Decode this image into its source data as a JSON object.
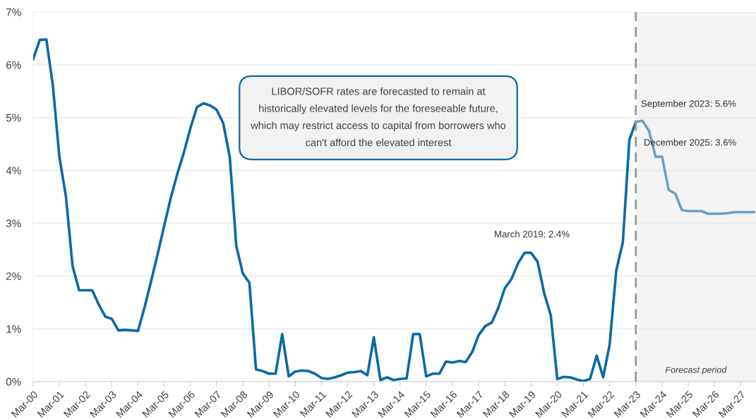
{
  "chart_data": {
    "type": "line",
    "x": [
      "2000-03",
      "2000-06",
      "2000-09",
      "2000-12",
      "2001-03",
      "2001-06",
      "2001-09",
      "2001-12",
      "2002-03",
      "2002-06",
      "2002-09",
      "2002-12",
      "2003-03",
      "2003-06",
      "2003-09",
      "2003-12",
      "2004-03",
      "2004-06",
      "2004-09",
      "2004-12",
      "2005-03",
      "2005-06",
      "2005-09",
      "2005-12",
      "2006-03",
      "2006-06",
      "2006-09",
      "2006-12",
      "2007-03",
      "2007-06",
      "2007-09",
      "2007-12",
      "2008-03",
      "2008-06",
      "2008-09",
      "2008-12",
      "2009-03",
      "2009-06",
      "2009-09",
      "2009-12",
      "2010-03",
      "2010-06",
      "2010-09",
      "2010-12",
      "2011-03",
      "2011-06",
      "2011-09",
      "2011-12",
      "2012-03",
      "2012-06",
      "2012-09",
      "2012-12",
      "2013-03",
      "2013-06",
      "2013-09",
      "2013-12",
      "2014-03",
      "2014-06",
      "2014-09",
      "2014-12",
      "2015-03",
      "2015-06",
      "2015-09",
      "2015-12",
      "2016-03",
      "2016-06",
      "2016-09",
      "2016-12",
      "2017-03",
      "2017-06",
      "2017-09",
      "2017-12",
      "2018-03",
      "2018-06",
      "2018-09",
      "2018-12",
      "2019-03",
      "2019-06",
      "2019-09",
      "2019-12",
      "2020-03",
      "2020-06",
      "2020-09",
      "2020-12",
      "2021-03",
      "2021-06",
      "2021-09",
      "2021-12",
      "2022-03",
      "2022-06",
      "2022-09",
      "2022-12",
      "2023-03"
    ],
    "series": [
      {
        "color": "#0a69a8",
        "values": [
          6.11,
          6.47,
          6.48,
          5.6,
          4.26,
          3.5,
          2.19,
          1.73,
          1.73,
          1.73,
          1.46,
          1.23,
          1.19,
          0.97,
          0.98,
          0.97,
          0.96,
          1.41,
          1.91,
          2.42,
          2.95,
          3.48,
          3.94,
          4.34,
          4.8,
          5.2,
          5.27,
          5.23,
          5.15,
          4.9,
          4.26,
          2.57,
          2.05,
          1.87,
          0.23,
          0.2,
          0.15,
          0.15,
          0.9,
          0.1,
          0.19,
          0.21,
          0.2,
          0.15,
          0.07,
          0.05,
          0.08,
          0.12,
          0.17,
          0.18,
          0.2,
          0.12,
          0.84,
          0.03,
          0.08,
          0.03,
          0.05,
          0.06,
          0.9,
          0.9,
          0.1,
          0.15,
          0.15,
          0.38,
          0.36,
          0.39,
          0.37,
          0.56,
          0.88,
          1.05,
          1.12,
          1.4,
          1.77,
          1.94,
          2.24,
          2.44,
          2.44,
          2.27,
          1.67,
          1.26,
          0.05,
          0.09,
          0.08,
          0.04,
          0.01,
          0.05,
          0.49,
          0.08,
          0.7,
          2.1,
          2.64,
          4.58,
          4.92
        ]
      },
      {
        "color": "#6f9ec2",
        "x": [
          "2023-03",
          "2023-06",
          "2023-09",
          "2023-12",
          "2024-03",
          "2024-06",
          "2024-09",
          "2024-12",
          "2025-03",
          "2025-06",
          "2025-09",
          "2025-12",
          "2026-03",
          "2026-06",
          "2026-09",
          "2026-12",
          "2027-03",
          "2027-06",
          "2027-09"
        ],
        "values": [
          4.92,
          4.94,
          4.75,
          4.26,
          4.26,
          3.63,
          3.56,
          3.25,
          3.23,
          3.23,
          3.23,
          3.18,
          3.18,
          3.18,
          3.19,
          3.21,
          3.21,
          3.21,
          3.21
        ]
      }
    ],
    "xlim": [
      "2000-03",
      "2027-10"
    ],
    "xticks": [
      {
        "value": "2000-03",
        "label": "Mar-00"
      },
      {
        "value": "2001-03",
        "label": "Mar-01"
      },
      {
        "value": "2002-03",
        "label": "Mar-02"
      },
      {
        "value": "2003-03",
        "label": "Mar-03"
      },
      {
        "value": "2004-03",
        "label": "Mar-04"
      },
      {
        "value": "2005-03",
        "label": "Mar-05"
      },
      {
        "value": "2006-03",
        "label": "Mar-06"
      },
      {
        "value": "2007-03",
        "label": "Mar-07"
      },
      {
        "value": "2008-03",
        "label": "Mar-08"
      },
      {
        "value": "2009-03",
        "label": "Mar-09"
      },
      {
        "value": "2010-03",
        "label": "Mar-10"
      },
      {
        "value": "2011-03",
        "label": "Mar-11"
      },
      {
        "value": "2012-03",
        "label": "Mar-12"
      },
      {
        "value": "2013-03",
        "label": "Mar-13"
      },
      {
        "value": "2014-03",
        "label": "Mar-14"
      },
      {
        "value": "2015-03",
        "label": "Mar-15"
      },
      {
        "value": "2016-03",
        "label": "Mar-16"
      },
      {
        "value": "2017-03",
        "label": "Mar-17"
      },
      {
        "value": "2018-03",
        "label": "Mar-18"
      },
      {
        "value": "2019-03",
        "label": "Mar-19"
      },
      {
        "value": "2020-03",
        "label": "Mar-20"
      },
      {
        "value": "2021-03",
        "label": "Mar-21"
      },
      {
        "value": "2022-03",
        "label": "Mar-22"
      },
      {
        "value": "2023-03",
        "label": "Mar-23"
      },
      {
        "value": "2024-03",
        "label": "Mar-24"
      },
      {
        "value": "2025-03",
        "label": "Mar-25"
      },
      {
        "value": "2026-03",
        "label": "Mar-26"
      },
      {
        "value": "2027-03",
        "label": "Mar-27"
      }
    ],
    "ylim": [
      0,
      7
    ],
    "yticks": [
      {
        "value": 0,
        "label": "0%"
      },
      {
        "value": 1,
        "label": "1%"
      },
      {
        "value": 2,
        "label": "2%"
      },
      {
        "value": 3,
        "label": "3%"
      },
      {
        "value": 4,
        "label": "4%"
      },
      {
        "value": 5,
        "label": "5%"
      },
      {
        "value": 6,
        "label": "6%"
      },
      {
        "value": 7,
        "label": "7%"
      }
    ],
    "grid": "y",
    "marker": "none",
    "line_style": "solid",
    "legend": false,
    "ref_lines": [
      {
        "axis": "x",
        "value": "2023-03",
        "color": "#999999",
        "line_style": "dashed"
      }
    ],
    "bands": [
      {
        "axis": "x",
        "from": "2023-03",
        "to": "2027-10",
        "label": "Forecast period",
        "color": "#f4f4f4"
      }
    ],
    "annotations": [
      "March 2019: 2.4%",
      "September 2023: 5.6%",
      "December 2025: 3.6%",
      "LIBOR/SOFR rates are forecasted to remain at historically elevated levels for the foreseeable future, which may restrict access to capital from borrowers who can't afford the elevated interest"
    ]
  }
}
